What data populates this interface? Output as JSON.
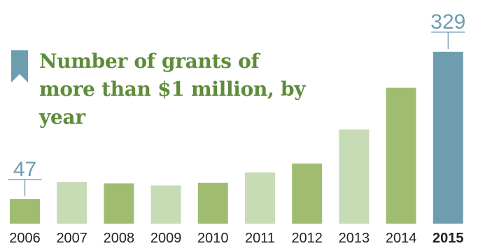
{
  "chart_data": {
    "type": "bar",
    "title": "Number of grants of more than $1 million, by year",
    "categories": [
      "2006",
      "2007",
      "2008",
      "2009",
      "2010",
      "2011",
      "2012",
      "2013",
      "2014",
      "2015"
    ],
    "values": [
      47,
      80,
      77,
      73,
      78,
      98,
      115,
      180,
      260,
      329
    ],
    "bar_colors": [
      "#a0bc70",
      "#c7dbb4",
      "#a0bc70",
      "#c7dbb4",
      "#a0bc70",
      "#c7dbb4",
      "#a0bc70",
      "#c7dbb4",
      "#a0bc70",
      "#6f9db0"
    ],
    "data_labels": [
      {
        "category": "2006",
        "text": "47"
      },
      {
        "category": "2015",
        "text": "329"
      }
    ],
    "highlight_category": "2015",
    "label_color": "#6f9db0",
    "tick_color": "#222222",
    "ylim": [
      0,
      329
    ],
    "grid": false,
    "legend": "none"
  },
  "title": {
    "text": "Number of grants of more than $1 million, by year",
    "icon": "bookmark-icon",
    "color": "#5e8c3a"
  }
}
